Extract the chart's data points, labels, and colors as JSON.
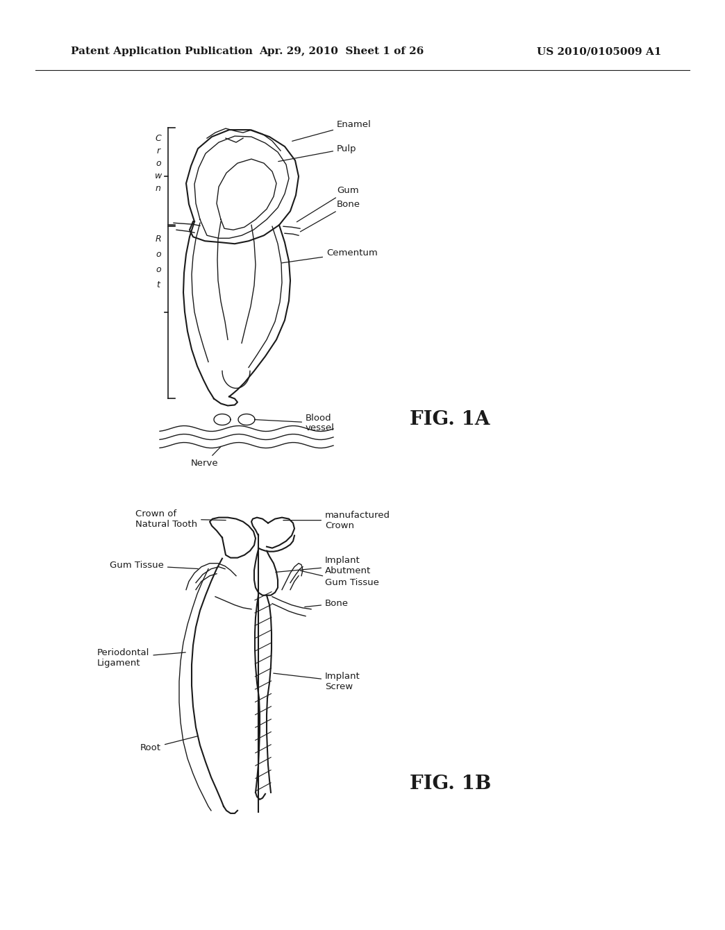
{
  "background_color": "#ffffff",
  "header_left": "Patent Application Publication",
  "header_center": "Apr. 29, 2010  Sheet 1 of 26",
  "header_right": "US 2010/0105009 A1",
  "line_color": "#1a1a1a",
  "fig1a_label": "FIG. 1A",
  "fig1b_label": "FIG. 1B",
  "fig_label_fontsize": 20,
  "header_fontsize": 11,
  "annotation_fontsize": 9.5
}
